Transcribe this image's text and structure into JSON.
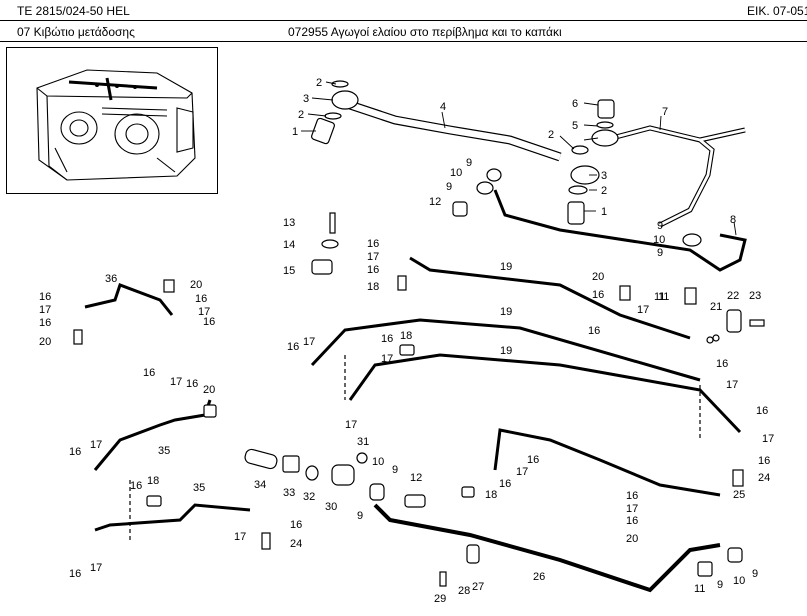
{
  "header": {
    "doc_code": "TE 2815/024-50 HEL",
    "figure_ref": "ΕΙΚ. 07-051",
    "group_label": "07 Κιβώτιο μετάδοσης",
    "figure_title": "072955 Αγωγοί ελαίου στο περίβλημα και το καπάκι"
  },
  "callouts": [
    "1",
    "2",
    "3",
    "4",
    "5",
    "6",
    "7",
    "8",
    "9",
    "10",
    "11",
    "12",
    "13",
    "14",
    "15",
    "16",
    "17",
    "18",
    "19",
    "20",
    "21",
    "22",
    "23",
    "24",
    "25",
    "26",
    "27",
    "28",
    "29",
    "30",
    "31",
    "32",
    "33",
    "34",
    "35",
    "36"
  ]
}
